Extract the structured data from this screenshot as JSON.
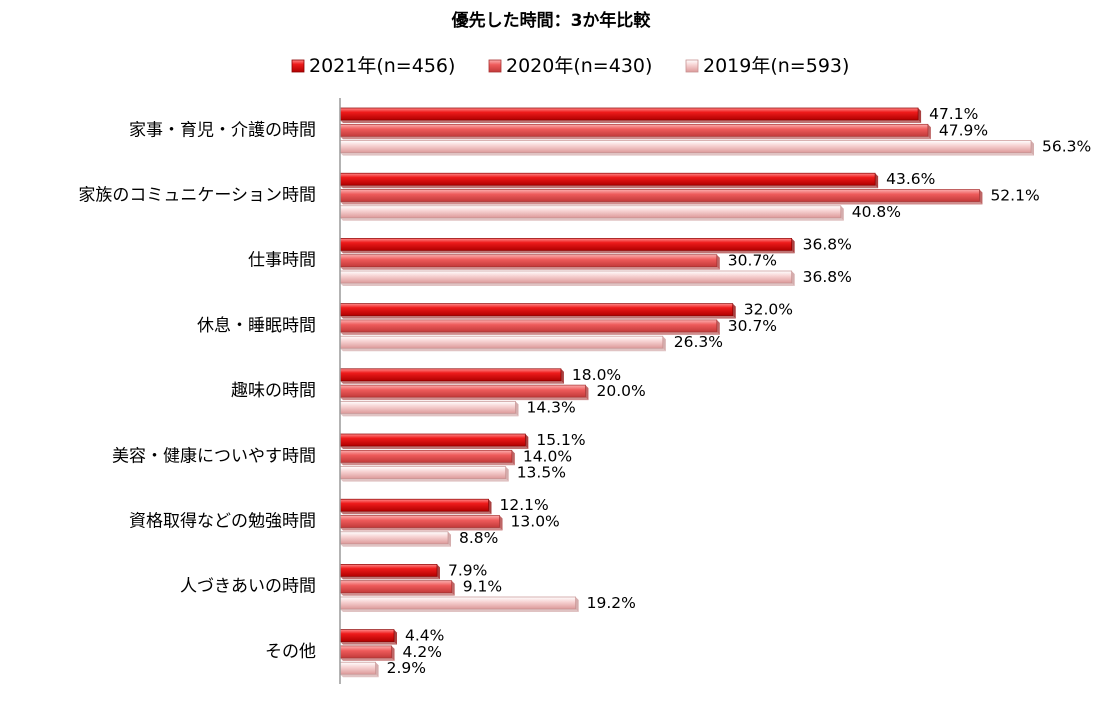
{
  "chart_data": {
    "type": "bar",
    "orientation": "horizontal",
    "title": "優先した時間：3か年比較",
    "categories": [
      "家事・育児・介護の時間",
      "家族のコミュニケーション時間",
      "仕事時間",
      "休息・睡眠時間",
      "趣味の時間",
      "美容・健康についやす時間",
      "資格取得などの勉強時間",
      "人づきあいの時間",
      "その他"
    ],
    "series": [
      {
        "name": "2021年(n=456)",
        "color": "#e8000f",
        "values": [
          47.1,
          43.6,
          36.8,
          32.0,
          18.0,
          15.1,
          12.1,
          7.9,
          4.4
        ],
        "labels": [
          "47.1%",
          "43.6%",
          "36.8%",
          "32.0%",
          "18.0%",
          "15.1%",
          "12.1%",
          "7.9%",
          "4.4%"
        ]
      },
      {
        "name": "2020年(n=430)",
        "color": "#ee5b5b",
        "values": [
          47.9,
          52.1,
          30.7,
          30.7,
          20.0,
          14.0,
          13.0,
          9.1,
          4.2
        ],
        "labels": [
          "47.9%",
          "52.1%",
          "30.7%",
          "30.7%",
          "20.0%",
          "14.0%",
          "13.0%",
          "9.1%",
          "4.2%"
        ]
      },
      {
        "name": "2019年(n=593)",
        "color": "#f4c4c4",
        "values": [
          56.3,
          40.8,
          36.8,
          26.3,
          14.3,
          13.5,
          8.8,
          19.2,
          2.9
        ],
        "labels": [
          "56.3%",
          "40.8%",
          "36.8%",
          "26.3%",
          "14.3%",
          "13.5%",
          "8.8%",
          "19.2%",
          "2.9%"
        ]
      }
    ],
    "xlim": [
      0,
      60
    ],
    "grid": false,
    "legend_position": "top"
  }
}
